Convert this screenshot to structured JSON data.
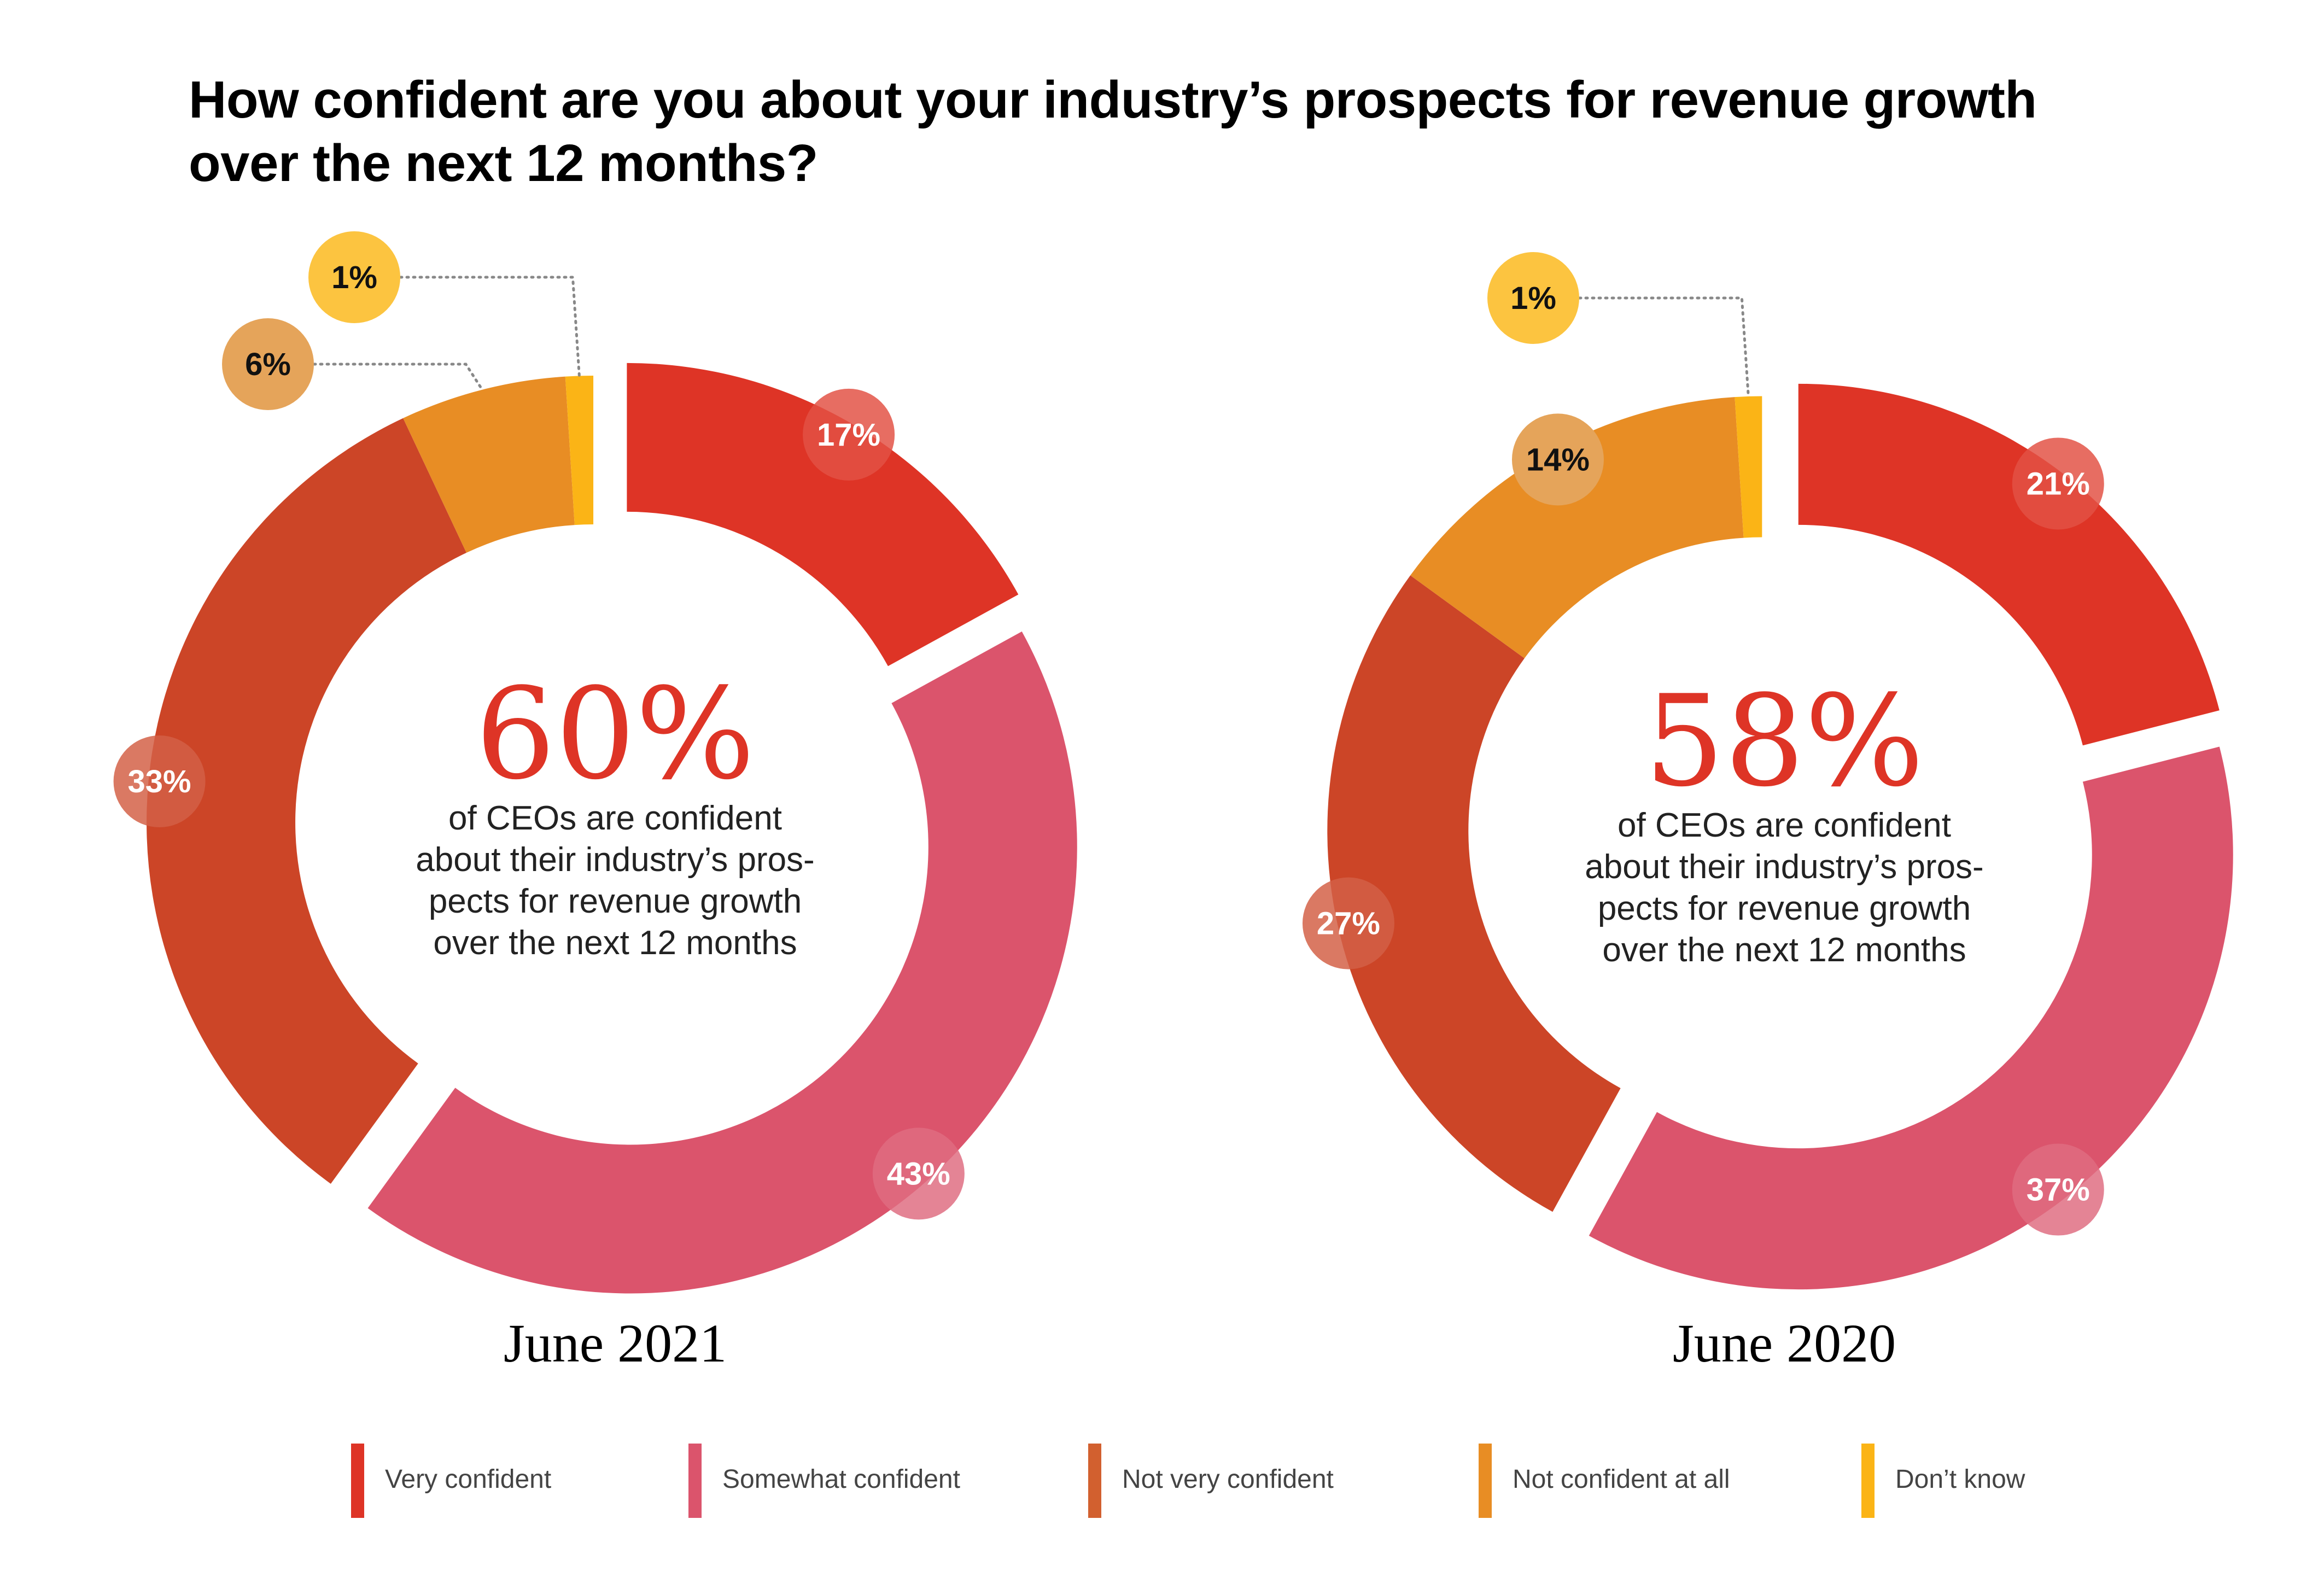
{
  "title": "How confident are you about your industry’s prospects for revenue growth over the next 12 months?",
  "title_lines": [
    "How confident are you about your industry’s prospects for revenue growth",
    "over the next 12 months?"
  ],
  "colors": {
    "very_confident": "#DE3426",
    "somewhat_confident": "#DB546C",
    "not_very_confident": "#CC4527",
    "not_confident_at_all": "#E88D24",
    "dont_know": "#FBB416",
    "headline_number": "#DE3426",
    "body_text": "#222222",
    "legend_text": "#444444",
    "leader_line": "#888888"
  },
  "legend": [
    {
      "key": "very_confident",
      "label": "Very confident",
      "color": "#DE3426"
    },
    {
      "key": "somewhat_confident",
      "label": "Somewhat confident",
      "color": "#DB546C"
    },
    {
      "key": "not_very_confident",
      "label": "Not very confident",
      "color": "#D2602F"
    },
    {
      "key": "not_confident_at_all",
      "label": "Not confident at all",
      "color": "#E88D24"
    },
    {
      "key": "dont_know",
      "label": "Don’t know",
      "color": "#FBB416"
    }
  ],
  "chart_data": [
    {
      "type": "pie",
      "variant": "donut",
      "period_label": "June 2021",
      "headline": "60%",
      "caption_lines": [
        "of CEOs are confident",
        "about their industry’s pros-",
        "pects for revenue growth",
        "over the next 12 months"
      ],
      "categories": [
        "Very confident",
        "Somewhat confident",
        "Not very confident",
        "Not confident at all",
        "Don’t know"
      ],
      "values": [
        17,
        43,
        33,
        6,
        1
      ],
      "labels": [
        "17%",
        "43%",
        "33%",
        "6%",
        "1%"
      ]
    },
    {
      "type": "pie",
      "variant": "donut",
      "period_label": "June 2020",
      "headline": "58%",
      "caption_lines": [
        "of CEOs are confident",
        "about their industry’s pros-",
        "pects for revenue growth",
        "over the next 12 months"
      ],
      "categories": [
        "Very confident",
        "Somewhat confident",
        "Not very confident",
        "Not confident at all",
        "Don’t know"
      ],
      "values": [
        21,
        37,
        27,
        14,
        1
      ],
      "labels": [
        "21%",
        "37%",
        "27%",
        "14%",
        "1%"
      ]
    }
  ]
}
